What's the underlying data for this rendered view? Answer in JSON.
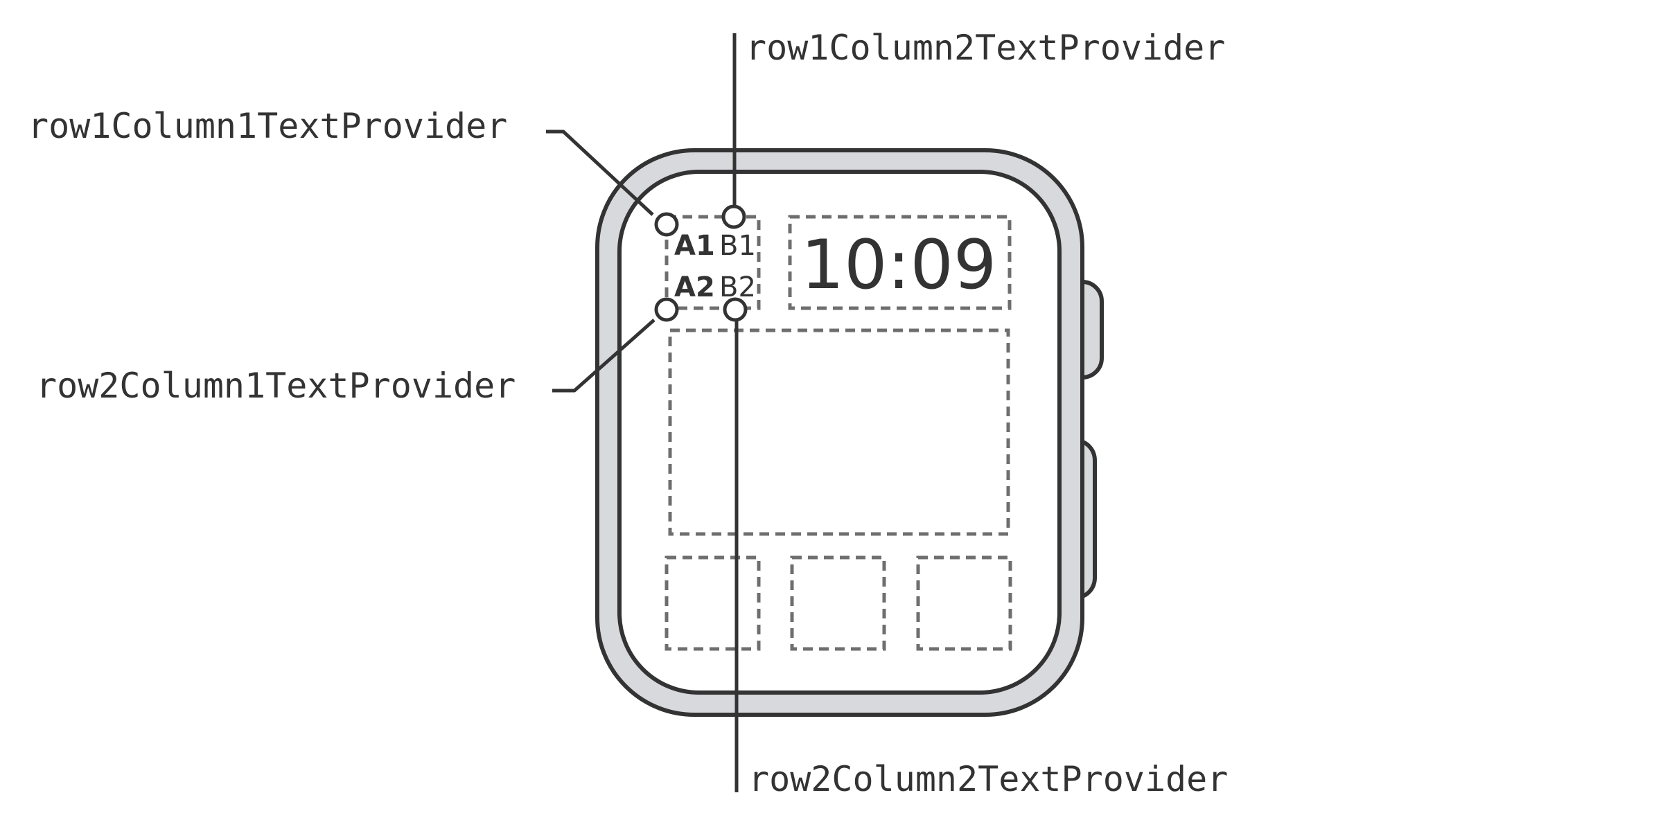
{
  "callouts": {
    "row1_column1": "row1Column1TextProvider",
    "row1_column2": "row1Column2TextProvider",
    "row2_column1": "row2Column1TextProvider",
    "row2_column2": "row2Column2TextProvider"
  },
  "face": {
    "a1": "A1",
    "b1": "B1",
    "a2": "A2",
    "b2": "B2",
    "time": "10:09"
  },
  "colors": {
    "outline": "#333333",
    "case_fill": "#d8d9dd",
    "dashed_slot": "#6e6e6e"
  }
}
